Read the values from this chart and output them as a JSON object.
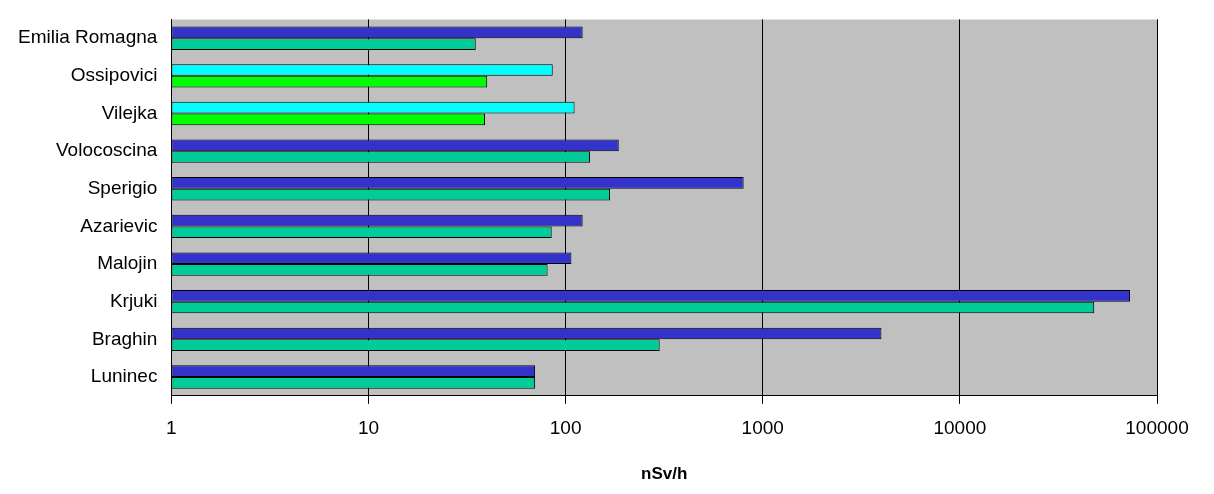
{
  "chart_data": {
    "type": "bar",
    "orientation": "horizontal",
    "xlabel": "nSv/h",
    "log": "x",
    "grid": "x",
    "xlim": [
      1,
      100000
    ],
    "xticks": [
      1,
      10,
      100,
      1000,
      10000,
      100000
    ],
    "categories": [
      "Emilia Romagna",
      "Ossipovici",
      "Vilejka",
      "Volocoscina",
      "Sperigio",
      "Azarievic",
      "Malojin",
      "Krjuki",
      "Braghin",
      "Luninec"
    ],
    "series": [
      {
        "colors": [
          "#3333cc",
          "#00ffff",
          "#00ffff",
          "#3333cc",
          "#3333cc",
          "#3333cc",
          "#3333cc",
          "#3333cc",
          "#3333cc",
          "#3333cc"
        ],
        "values": [
          122,
          86,
          111,
          186,
          800,
          122,
          107,
          73000,
          4000,
          70
        ]
      },
      {
        "colors": [
          "#00cc99",
          "#00ff00",
          "#00ff00",
          "#00cc99",
          "#00cc99",
          "#00cc99",
          "#00cc99",
          "#00cc99",
          "#00cc99",
          "#00cc99"
        ],
        "values": [
          35,
          40,
          39,
          133,
          168,
          85,
          81,
          48000,
          300,
          70
        ]
      }
    ]
  }
}
